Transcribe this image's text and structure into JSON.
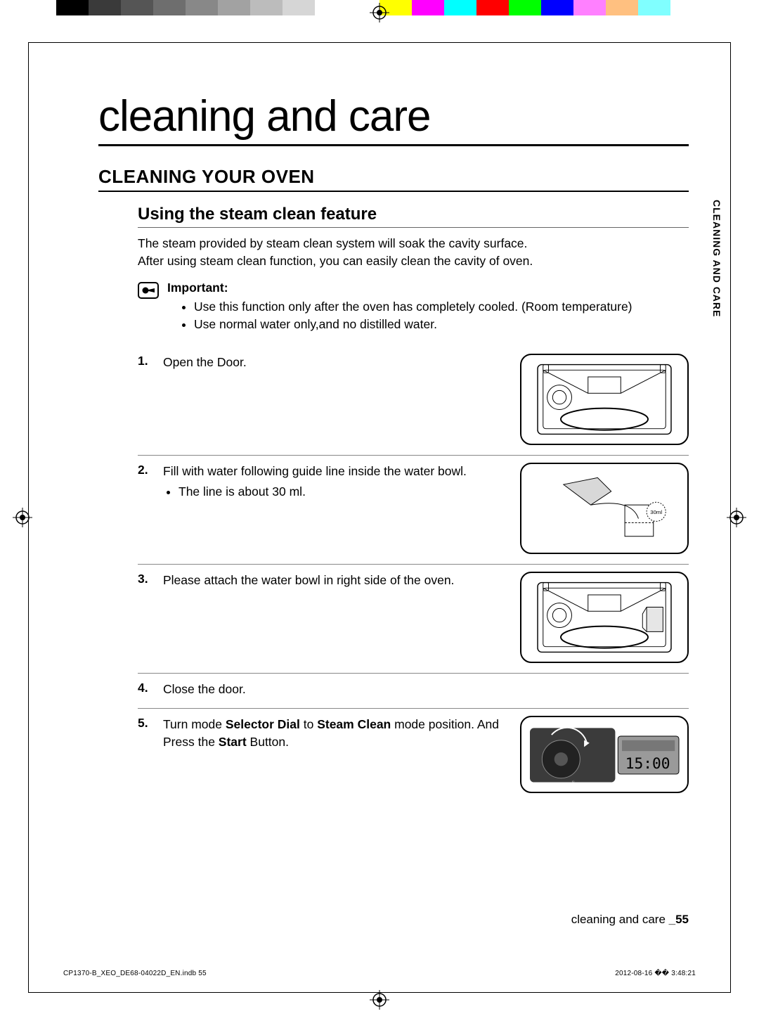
{
  "colors": {
    "bar": [
      "#000000",
      "#3a3a3a",
      "#555555",
      "#6e6e6e",
      "#888888",
      "#a2a2a2",
      "#bcbcbc",
      "#d6d6d6",
      "#ffffff",
      "#ffffff",
      "#ffff00",
      "#ff00ff",
      "#00ffff",
      "#ff0000",
      "#00ff00",
      "#0000ff",
      "#ff80ff",
      "#ffc080",
      "#80ffff",
      "#ffffff"
    ],
    "text": "#000000",
    "rule": "#000000",
    "page_bg": "#ffffff"
  },
  "typography": {
    "body_fontsize_pt": 13,
    "title_fontsize_pt": 46,
    "section_fontsize_pt": 19,
    "subtitle_fontsize_pt": 18,
    "tab_fontsize_pt": 10
  },
  "main_title": "cleaning and care",
  "section_title": "CLEANING YOUR OVEN",
  "sub_title": "Using the steam clean feature",
  "intro": [
    "The steam provided by steam clean system will soak the cavity surface.",
    "After using steam clean function, you can easily clean the cavity of oven."
  ],
  "important": {
    "label": "Important:",
    "items": [
      "Use this function only after the oven has completely cooled. (Room temperature)",
      "Use normal water only,and no distilled water."
    ]
  },
  "side_tab": "CLEANING AND CARE",
  "steps": [
    {
      "n": "1.",
      "text": "Open the Door.",
      "has_fig": true,
      "fig": "oven-open"
    },
    {
      "n": "2.",
      "text": "Fill with water following guide line inside the water bowl.",
      "sub": [
        "The line is about 30 ml."
      ],
      "has_fig": true,
      "fig": "pour-water",
      "fig_label": "30ml"
    },
    {
      "n": "3.",
      "text": "Please attach the water bowl in right side of the oven.",
      "has_fig": true,
      "fig": "oven-bowl"
    },
    {
      "n": "4.",
      "text": "Close the door.",
      "has_fig": false
    },
    {
      "n": "5.",
      "text_parts": [
        "Turn mode ",
        {
          "b": "Selector Dial"
        },
        " to ",
        {
          "b": "Steam Clean"
        },
        " mode position. And Press the ",
        {
          "b": "Start"
        },
        " Button."
      ],
      "has_fig": true,
      "fig": "control-panel",
      "fig_label": "15:00"
    }
  ],
  "footer": {
    "section": "cleaning and care ",
    "page": "_55"
  },
  "print_footer": {
    "left": "CP1370-B_XEO_DE68-04022D_EN.indb   55",
    "right": "2012-08-16   �� 3:48:21"
  }
}
